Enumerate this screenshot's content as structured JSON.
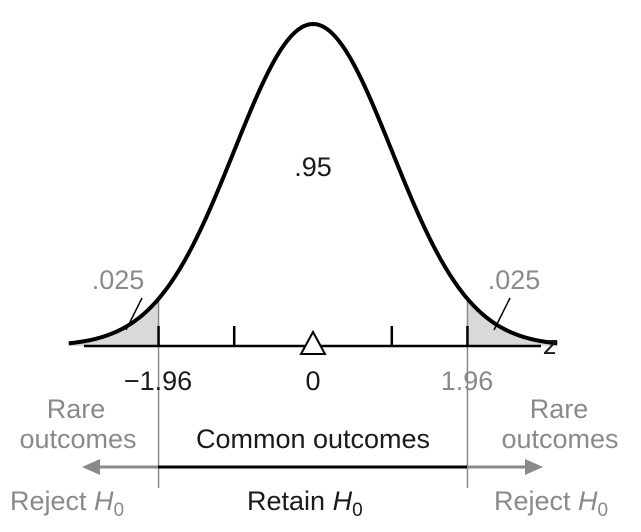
{
  "chart_data": {
    "type": "area",
    "distribution": "standard normal",
    "xlabel": "z",
    "x_range": [
      -3.1,
      3.1
    ],
    "center_marker": 0,
    "ticks": [
      {
        "value": -1.96,
        "label": "−1.96"
      },
      {
        "value": -1,
        "label": ""
      },
      {
        "value": 0,
        "label": "0"
      },
      {
        "value": 1,
        "label": ""
      },
      {
        "value": 1.96,
        "label": "1.96"
      }
    ],
    "regions": [
      {
        "from": -3.1,
        "to": -1.96,
        "probability_label": ".025",
        "shaded": true
      },
      {
        "from": -1.96,
        "to": 1.96,
        "probability_label": ".95",
        "shaded": false
      },
      {
        "from": 1.96,
        "to": 3.1,
        "probability_label": ".025",
        "shaded": true
      }
    ]
  },
  "annotations": {
    "left_rare": [
      "Rare",
      "outcomes"
    ],
    "right_rare": [
      "Rare",
      "outcomes"
    ],
    "common": "Common outcomes",
    "reject_left": {
      "text": "Reject ",
      "symbol": "H",
      "subscript": "0"
    },
    "reject_right": {
      "text": "Reject ",
      "symbol": "H",
      "subscript": "0"
    },
    "retain": {
      "text": "Retain ",
      "symbol": "H",
      "subscript": "0"
    }
  },
  "colors": {
    "curve": "#000000",
    "shade": "#d9d9d9",
    "gray": "#8a8a8a",
    "dark": "#1a1a1a"
  }
}
